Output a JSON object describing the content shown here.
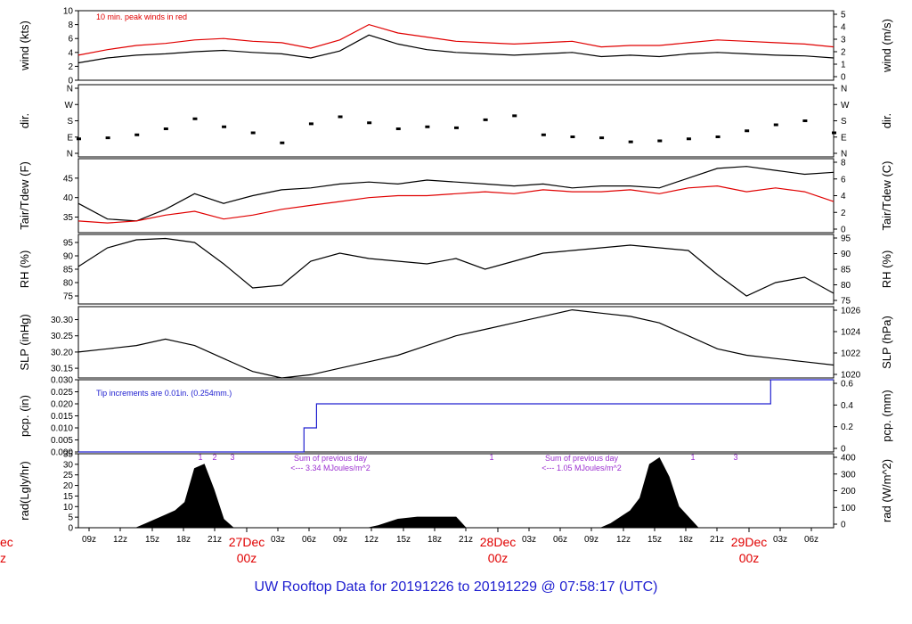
{
  "title": "UW Rooftop Data for 20191226  to  20191229 @ 07:58:17  (UTC)",
  "colors": {
    "black": "#000000",
    "red": "#e00000",
    "blue": "#2020d0",
    "purple": "#9b30d0"
  },
  "chart_data": [
    {
      "type": "line",
      "name_left": "wind (kts)",
      "name_right": "wind (m/s)",
      "annotation": "10 min. peak winds in red",
      "y_left_ticks": [
        "0",
        "2",
        "4",
        "6",
        "8",
        "10"
      ],
      "y_right_ticks": [
        "0",
        "1",
        "2",
        "3",
        "4",
        "5"
      ],
      "ylim": [
        0,
        10
      ],
      "series": [
        {
          "name": "",
          "color": "#000000",
          "x": [
            0,
            3,
            6,
            9,
            12,
            15,
            18,
            21,
            24,
            27,
            30,
            33,
            36,
            39,
            42,
            45,
            48,
            51,
            54,
            57,
            60,
            63,
            66,
            69,
            72,
            75,
            78
          ],
          "values": [
            2.5,
            3.2,
            3.6,
            3.8,
            4.1,
            4.3,
            4.0,
            3.8,
            3.2,
            4.2,
            6.5,
            5.2,
            4.4,
            4.0,
            3.8,
            3.6,
            3.8,
            4.0,
            3.4,
            3.6,
            3.4,
            3.8,
            4.0,
            3.8,
            3.6,
            3.5,
            3.2
          ]
        },
        {
          "name": "",
          "color": "#e00000",
          "x": [
            0,
            3,
            6,
            9,
            12,
            15,
            18,
            21,
            24,
            27,
            30,
            33,
            36,
            39,
            42,
            45,
            48,
            51,
            54,
            57,
            60,
            63,
            66,
            69,
            72,
            75,
            78
          ],
          "values": [
            3.6,
            4.4,
            5.0,
            5.3,
            5.8,
            6.0,
            5.6,
            5.4,
            4.6,
            5.8,
            8.0,
            6.8,
            6.2,
            5.6,
            5.4,
            5.2,
            5.4,
            5.6,
            4.8,
            5.0,
            5.0,
            5.4,
            5.8,
            5.6,
            5.4,
            5.2,
            4.8
          ]
        }
      ]
    },
    {
      "type": "scatter",
      "name_left": "dir.",
      "name_right": "dir.",
      "y_left_ticks": [
        "N",
        "E",
        "S",
        "W",
        "N"
      ],
      "y_right_ticks": [
        "N",
        "E",
        "S",
        "W",
        "N"
      ],
      "ylim": [
        0,
        360
      ],
      "series": [
        {
          "name": "",
          "color": "#000000",
          "x": [
            0,
            3,
            6,
            9,
            12,
            15,
            18,
            21,
            24,
            27,
            30,
            33,
            36,
            39,
            42,
            45,
            48,
            51,
            54,
            57,
            60,
            63,
            66,
            69,
            72,
            75,
            78
          ],
          "values": [
            90,
            95,
            110,
            140,
            190,
            150,
            120,
            70,
            165,
            200,
            170,
            140,
            150,
            145,
            185,
            205,
            110,
            100,
            95,
            75,
            80,
            90,
            100,
            130,
            160,
            180,
            120
          ]
        }
      ]
    },
    {
      "type": "line",
      "name_left": "Tair/Tdew (F)",
      "name_right": "Tair/Tdew (C)",
      "y_left_ticks": [
        "35",
        "40",
        "45"
      ],
      "y_right_ticks": [
        "0",
        "2",
        "4",
        "6",
        "8"
      ],
      "ylim": [
        31,
        50
      ],
      "series": [
        {
          "name": "",
          "color": "#000000",
          "x": [
            0,
            3,
            6,
            9,
            12,
            15,
            18,
            21,
            24,
            27,
            30,
            33,
            36,
            39,
            42,
            45,
            48,
            51,
            54,
            57,
            60,
            63,
            66,
            69,
            72,
            75,
            78
          ],
          "values": [
            38.5,
            34.5,
            34.0,
            37.0,
            41.0,
            38.5,
            40.5,
            42.0,
            42.5,
            43.5,
            44.0,
            43.5,
            44.5,
            44.0,
            43.5,
            43.0,
            43.5,
            42.5,
            43.0,
            43.0,
            42.5,
            45.0,
            47.5,
            48.0,
            47.0,
            46.0,
            46.5
          ]
        },
        {
          "name": "",
          "color": "#e00000",
          "x": [
            0,
            3,
            6,
            9,
            12,
            15,
            18,
            21,
            24,
            27,
            30,
            33,
            36,
            39,
            42,
            45,
            48,
            51,
            54,
            57,
            60,
            63,
            66,
            69,
            72,
            75,
            78
          ],
          "values": [
            34.0,
            33.5,
            34.0,
            35.5,
            36.5,
            34.5,
            35.5,
            37.0,
            38.0,
            39.0,
            40.0,
            40.5,
            40.5,
            41.0,
            41.5,
            41.0,
            42.0,
            41.5,
            41.5,
            42.0,
            41.0,
            42.5,
            43.0,
            41.5,
            42.5,
            41.5,
            39.0
          ]
        }
      ]
    },
    {
      "type": "line",
      "name_left": "RH (%)",
      "name_right": "RH (%)",
      "y_left_ticks": [
        "75",
        "80",
        "85",
        "90",
        "95"
      ],
      "y_right_ticks": [
        "75",
        "80",
        "85",
        "90",
        "95"
      ],
      "ylim": [
        72,
        98
      ],
      "series": [
        {
          "name": "",
          "color": "#000000",
          "x": [
            0,
            3,
            6,
            9,
            12,
            15,
            18,
            21,
            24,
            27,
            30,
            33,
            36,
            39,
            42,
            45,
            48,
            51,
            54,
            57,
            60,
            63,
            66,
            69,
            72,
            75,
            78
          ],
          "values": [
            86,
            93,
            96,
            96.5,
            95,
            87,
            78,
            79,
            88,
            91,
            89,
            88,
            87,
            89,
            85,
            88,
            91,
            92,
            93,
            94,
            93,
            92,
            83,
            75,
            80,
            82,
            76
          ]
        }
      ]
    },
    {
      "type": "line",
      "name_left": "SLP (inHg)",
      "name_right": "SLP (hPa)",
      "y_left_ticks": [
        "30.15",
        "30.20",
        "30.25",
        "30.30"
      ],
      "y_right_ticks": [
        "1020",
        "1022",
        "1024",
        "1026"
      ],
      "ylim": [
        30.12,
        30.34
      ],
      "series": [
        {
          "name": "",
          "color": "#000000",
          "x": [
            0,
            3,
            6,
            9,
            12,
            15,
            18,
            21,
            24,
            27,
            30,
            33,
            36,
            39,
            42,
            45,
            48,
            51,
            54,
            57,
            60,
            63,
            66,
            69,
            72,
            75,
            78
          ],
          "values": [
            30.2,
            30.21,
            30.22,
            30.24,
            30.22,
            30.18,
            30.14,
            30.12,
            30.13,
            30.15,
            30.17,
            30.19,
            30.22,
            30.25,
            30.27,
            30.29,
            30.31,
            30.33,
            30.32,
            30.31,
            30.29,
            30.25,
            30.21,
            30.19,
            30.18,
            30.17,
            30.16
          ]
        }
      ]
    },
    {
      "type": "line",
      "name_left": "pcp. (in)",
      "name_right": "pcp. (mm)",
      "annotation": "Tip increments are 0.01in. (0.254mm.)",
      "y_left_ticks": [
        "0.000",
        "0.005",
        "0.010",
        "0.015",
        "0.020",
        "0.025",
        "0.030"
      ],
      "y_right_ticks": [
        "0",
        "0.2",
        "0.4",
        "0.6"
      ],
      "ylim": [
        0,
        0.03
      ],
      "series": [
        {
          "name": "",
          "color": "#2020d0",
          "x": [
            0,
            23.3,
            23.3,
            24.6,
            24.6,
            71.5,
            71.5,
            78
          ],
          "values": [
            0,
            0,
            0.01,
            0.01,
            0.02,
            0.02,
            0.03,
            0.03
          ]
        }
      ]
    },
    {
      "type": "area",
      "name_left": "rad(Lgly/hr)",
      "name_right": "rad (W/m^2)",
      "annotations": [
        "1",
        "2",
        "3",
        "Sum of previous day",
        "<--- 3.34 MJoules/m^2",
        "1",
        "Sum of previous day",
        "<--- 1.05 MJoules/m^2",
        "1",
        "3"
      ],
      "y_left_ticks": [
        "0",
        "5",
        "10",
        "15",
        "20",
        "25",
        "30",
        "35"
      ],
      "y_right_ticks": [
        "0",
        "100",
        "200",
        "300",
        "400"
      ],
      "ylim": [
        0,
        35
      ],
      "series": [
        {
          "name": "",
          "color": "#000000",
          "x": [
            0,
            6,
            7,
            9,
            10,
            11,
            12,
            13,
            14,
            15,
            16,
            30,
            31,
            33,
            35,
            37,
            39,
            40,
            54,
            55,
            57,
            58,
            59,
            60,
            61,
            62,
            64,
            78
          ],
          "values": [
            0,
            0,
            2,
            6,
            8,
            12,
            28,
            30,
            18,
            4,
            0,
            0,
            1,
            4,
            5,
            5,
            5,
            0,
            0,
            2,
            8,
            14,
            30,
            33,
            24,
            10,
            0,
            0
          ]
        }
      ]
    }
  ],
  "x_axis": {
    "tick_labels": [
      "09z",
      "12z",
      "15z",
      "18z",
      "21z",
      "03z",
      "06z",
      "09z",
      "12z",
      "15z",
      "18z",
      "21z",
      "03z",
      "06z",
      "09z",
      "12z",
      "15z",
      "18z",
      "21z",
      "03z",
      "06z"
    ],
    "day_labels": [
      {
        "date": "27Dec",
        "time": "00z"
      },
      {
        "date": "28Dec",
        "time": "00z"
      },
      {
        "date": "29Dec",
        "time": "00z"
      }
    ],
    "left_cut_labels": {
      "date": "ec",
      "time": "z"
    }
  }
}
